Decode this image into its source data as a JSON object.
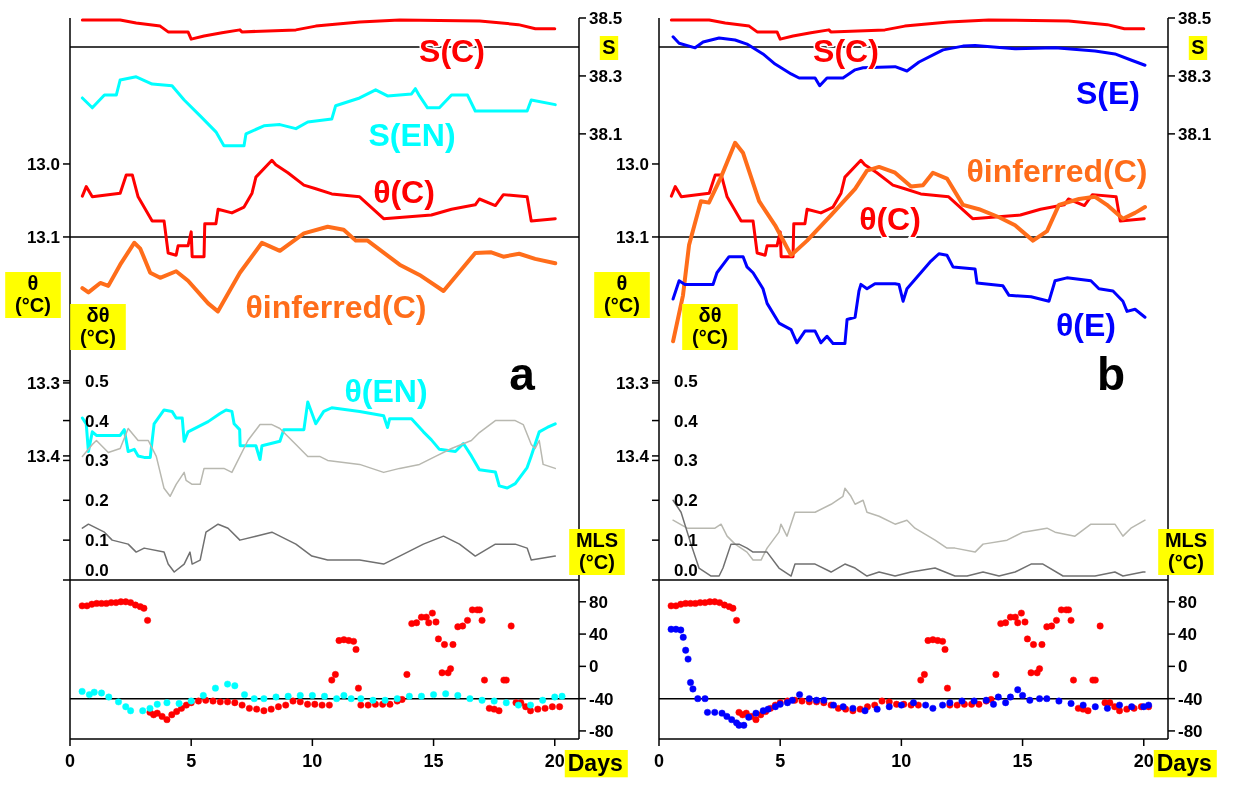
{
  "chart_data": [
    {
      "type": "line",
      "ylabel": "θ (°C)",
      "y2label": "S",
      "y3label": "δθ (°C)",
      "tick_labels": "y",
      "xlim": [
        0,
        21
      ],
      "ylim": [
        13.57,
        12.8
      ],
      "yticks": [
        {
          "value": 13.0,
          "label": "13.0"
        },
        13.1,
        13.3,
        13.4
      ],
      "y2lim": [
        36.56,
        38.5
      ],
      "y2ticks": [
        38.1,
        38.3,
        38.5
      ],
      "y3lim": [
        0,
        1.41
      ],
      "y3ticks": [
        {
          "value": 0,
          "label": "0.0"
        },
        0.1,
        0.2,
        0.3,
        0.4,
        0.5
      ],
      "ref_lines": [
        {
          "axis": "y2",
          "value": 38.4
        },
        {
          "axis": "y",
          "value": 13.1
        }
      ],
      "annotations": [
        "a"
      ],
      "series": [
        {
          "name": "S(C)",
          "color": "#ff0000",
          "axis": "y2",
          "x": [
            0.51,
            2.07,
            2.73,
            3.72,
            4.05,
            4.87,
            5.0,
            5.53,
            6.27,
            7.01,
            7.09,
            9.32,
            10.14,
            11.95,
            13.6,
            16.9,
            18.5,
            19.2,
            20.0
          ],
          "values": [
            38.493,
            38.493,
            38.483,
            38.472,
            38.452,
            38.452,
            38.427,
            38.438,
            38.449,
            38.459,
            38.452,
            38.459,
            38.472,
            38.486,
            38.493,
            38.49,
            38.477,
            38.463,
            38.463
          ]
        },
        {
          "name": "S(EN)",
          "color": "#00ffff",
          "axis": "y2",
          "x": [
            0.51,
            0.92,
            1.42,
            1.91,
            2.07,
            2.73,
            3.39,
            4.21,
            4.71,
            5.37,
            6.02,
            6.35,
            7.18,
            7.26,
            8.0,
            8.66,
            9.32,
            9.81,
            10.8,
            10.96,
            11.95,
            12.61,
            13.1,
            14.09,
            14.25,
            14.42,
            14.75,
            15.24,
            15.74,
            16.4,
            16.72,
            18.86,
            19.03,
            20.02
          ],
          "values": [
            38.224,
            38.19,
            38.234,
            38.234,
            38.286,
            38.297,
            38.272,
            38.266,
            38.217,
            38.162,
            38.107,
            38.059,
            38.059,
            38.1,
            38.128,
            38.132,
            38.118,
            38.141,
            38.151,
            38.197,
            38.224,
            38.252,
            38.231,
            38.238,
            38.256,
            38.231,
            38.19,
            38.19,
            38.234,
            38.234,
            38.179,
            38.179,
            38.217,
            38.201
          ]
        },
        {
          "name": "θ(C)",
          "color": "#ff0000",
          "x": [
            0.51,
            0.67,
            0.92,
            2.07,
            2.32,
            2.57,
            2.81,
            3.39,
            3.88,
            4.05,
            4.38,
            4.46,
            4.87,
            5.0,
            5.04,
            5.53,
            5.56,
            6.02,
            6.11,
            6.68,
            7.18,
            7.51,
            7.67,
            8.33,
            8.49,
            8.99,
            9.65,
            10.14,
            10.8,
            11.95,
            12.94,
            14.91,
            15.74,
            16.72,
            16.89,
            17.55,
            17.88,
            18.86,
            19.03,
            20.02
          ],
          "values": [
            13.044,
            13.031,
            13.045,
            13.04,
            13.015,
            13.015,
            13.045,
            13.078,
            13.078,
            13.122,
            13.125,
            13.112,
            13.112,
            13.093,
            13.127,
            13.127,
            13.082,
            13.082,
            13.062,
            13.067,
            13.059,
            13.04,
            13.018,
            12.995,
            13.001,
            13.012,
            13.029,
            13.034,
            13.041,
            13.045,
            13.075,
            13.07,
            13.062,
            13.056,
            13.048,
            13.057,
            13.042,
            13.045,
            13.078,
            13.075
          ]
        },
        {
          "name": "θinferred(C)",
          "color": "#ff6d1a",
          "x": [
            0.51,
            0.76,
            1.25,
            1.58,
            2.07,
            2.65,
            2.9,
            3.31,
            3.72,
            4.38,
            4.87,
            5.7,
            6.1,
            7.01,
            7.92,
            8.66,
            9.65,
            10.63,
            11.29,
            11.79,
            12.28,
            13.6,
            14.42,
            15.41,
            16.72,
            17.38,
            17.88,
            18.53,
            19.19,
            20.02
          ],
          "values": [
            13.17,
            13.176,
            13.163,
            13.167,
            13.138,
            13.108,
            13.116,
            13.149,
            13.156,
            13.147,
            13.16,
            13.191,
            13.202,
            13.149,
            13.108,
            13.119,
            13.095,
            13.086,
            13.09,
            13.105,
            13.105,
            13.138,
            13.152,
            13.174,
            13.122,
            13.121,
            13.127,
            13.123,
            13.13,
            13.136
          ]
        },
        {
          "name": "θ(EN)",
          "color": "#00ffff",
          "x": [
            0.51,
            0.67,
            0.76,
            0.92,
            1.09,
            2.07,
            2.24,
            2.4,
            2.65,
            2.81,
            3.06,
            3.31,
            3.47,
            3.88,
            4.21,
            4.38,
            4.63,
            4.71,
            4.87,
            5.7,
            6.19,
            6.44,
            6.68,
            6.77,
            7.0,
            7.02,
            7.67,
            7.84,
            7.92,
            8.66,
            8.82,
            9.65,
            9.81,
            10.14,
            10.47,
            10.8,
            11.95,
            12.94,
            13.1,
            13.19,
            14.09,
            14.58,
            14.91,
            15.24,
            15.9,
            16.23,
            16.56,
            16.89,
            17.55,
            17.71,
            18.04,
            18.37,
            18.86,
            19.03,
            19.36,
            19.69,
            20.02
          ],
          "values": [
            13.348,
            13.356,
            13.394,
            13.367,
            13.372,
            13.372,
            13.364,
            13.394,
            13.391,
            13.4,
            13.402,
            13.402,
            13.356,
            13.337,
            13.339,
            13.348,
            13.348,
            13.38,
            13.367,
            13.353,
            13.342,
            13.337,
            13.339,
            13.356,
            13.364,
            13.386,
            13.386,
            13.405,
            13.386,
            13.38,
            13.364,
            13.364,
            13.326,
            13.356,
            13.339,
            13.334,
            13.339,
            13.345,
            13.361,
            13.349,
            13.349,
            13.367,
            13.378,
            13.391,
            13.394,
            13.383,
            13.4,
            13.419,
            13.422,
            13.441,
            13.444,
            13.438,
            13.416,
            13.4,
            13.367,
            13.361,
            13.356
          ]
        },
        {
          "color": "#b8b8b0",
          "axis": "y3",
          "x": [
            0.51,
            0.92,
            1.09,
            1.58,
            2.07,
            2.4,
            2.81,
            3.23,
            3.56,
            3.88,
            4.13,
            4.38,
            4.71,
            4.79,
            5.04,
            5.37,
            5.53,
            6.02,
            6.35,
            6.68,
            7.34,
            7.84,
            8.33,
            8.66,
            9.32,
            9.81,
            10.3,
            10.63,
            11.95,
            12.94,
            13.6,
            14.42,
            15.08,
            15.74,
            16.56,
            16.89,
            17.55,
            18.37,
            18.7,
            19.03,
            19.19,
            19.36,
            19.52,
            20.02
          ],
          "values": [
            0.31,
            0.34,
            0.35,
            0.32,
            0.33,
            0.38,
            0.35,
            0.35,
            0.31,
            0.23,
            0.21,
            0.24,
            0.27,
            0.25,
            0.24,
            0.24,
            0.28,
            0.28,
            0.28,
            0.27,
            0.35,
            0.39,
            0.39,
            0.38,
            0.34,
            0.31,
            0.31,
            0.3,
            0.29,
            0.27,
            0.28,
            0.29,
            0.31,
            0.33,
            0.35,
            0.37,
            0.4,
            0.4,
            0.39,
            0.34,
            0.33,
            0.35,
            0.29,
            0.28
          ]
        },
        {
          "color": "#707070",
          "axis": "y3",
          "x": [
            0.51,
            0.76,
            1.09,
            1.42,
            1.74,
            2.4,
            2.73,
            3.06,
            3.88,
            4.05,
            4.3,
            4.71,
            4.95,
            5.04,
            5.37,
            5.61,
            6.11,
            6.52,
            7.01,
            7.67,
            8.33,
            8.66,
            9.32,
            9.98,
            10.63,
            11.95,
            12.94,
            13.6,
            14.58,
            15.41,
            16.07,
            16.72,
            17.55,
            18.37,
            18.86,
            19.03,
            20.02
          ],
          "values": [
            0.13,
            0.14,
            0.13,
            0.12,
            0.1,
            0.09,
            0.07,
            0.08,
            0.07,
            0.04,
            0.02,
            0.04,
            0.07,
            0.04,
            0.05,
            0.12,
            0.14,
            0.13,
            0.1,
            0.11,
            0.12,
            0.11,
            0.09,
            0.06,
            0.05,
            0.05,
            0.04,
            0.06,
            0.09,
            0.11,
            0.09,
            0.06,
            0.09,
            0.09,
            0.08,
            0.05,
            0.06
          ]
        }
      ]
    },
    {
      "type": "scatter",
      "marker": "circle",
      "xlabel": "Days",
      "ylabel": "MLS (°C)",
      "xlim": [
        0,
        21
      ],
      "xticks": [
        0,
        5,
        10,
        15,
        20
      ],
      "ylim": [
        -90,
        107
      ],
      "yticks": [
        -80,
        -40,
        0,
        40,
        80
      ],
      "ref_lines": [
        {
          "axis": "y",
          "value": -40
        }
      ],
      "series": [
        {
          "color": "#ff0000",
          "x": [
            0.5,
            0.7,
            0.9,
            1.1,
            1.3,
            1.5,
            1.7,
            1.9,
            2.1,
            2.3,
            2.5,
            2.7,
            2.9,
            3.05,
            3.2,
            3.3,
            3.45,
            3.6,
            3.8,
            4.0,
            4.2,
            4.4,
            4.6,
            4.8,
            5.0,
            5.3,
            5.6,
            5.9,
            6.2,
            6.5,
            6.8,
            7.1,
            7.4,
            7.7,
            8.0,
            8.3,
            8.6,
            8.9,
            9.2,
            9.5,
            9.8,
            10.1,
            10.4,
            10.7,
            10.8,
            10.95,
            11.1,
            11.3,
            11.5,
            11.7,
            11.8,
            11.9,
            12.0,
            12.3,
            12.6,
            12.9,
            13.2,
            13.5,
            13.7,
            13.9,
            14.1,
            14.3,
            14.5,
            14.7,
            14.8,
            14.95,
            15.1,
            15.2,
            15.35,
            15.45,
            15.6,
            15.7,
            15.8,
            16.0,
            16.2,
            16.4,
            16.6,
            16.8,
            16.9,
            17.0,
            17.1,
            17.3,
            17.5,
            17.7,
            17.9,
            18.0,
            18.2,
            18.4,
            18.6,
            18.8,
            19.0,
            19.3,
            19.6,
            19.9,
            20.2
          ],
          "values": [
            75,
            75,
            77,
            78,
            78,
            78,
            79,
            79,
            80,
            80,
            79,
            76,
            74,
            72,
            57,
            -57,
            -60,
            -58,
            -62,
            -66,
            -60,
            -56,
            -52,
            -48,
            -45,
            -43,
            -42,
            -43,
            -44,
            -44,
            -45,
            -48,
            -52,
            -53,
            -55,
            -53,
            -50,
            -48,
            -43,
            -44,
            -47,
            -47,
            -48,
            -48,
            -17,
            -10,
            32,
            33,
            32,
            31,
            21,
            -27,
            -48,
            -48,
            -47,
            -47,
            -47,
            -43,
            -41,
            -10,
            53,
            54,
            61,
            61,
            54,
            66,
            55,
            34,
            -8,
            27,
            -8,
            -3,
            27,
            49,
            50,
            57,
            70,
            70,
            70,
            57,
            -17,
            -52,
            -53,
            -55,
            -17,
            -17,
            50,
            -45,
            -45,
            -50,
            -55,
            -53,
            -52,
            -50,
            -50
          ]
        },
        {
          "color": "#00ffff",
          "x": [
            0.5,
            0.8,
            1.0,
            1.3,
            1.6,
            2.0,
            2.3,
            2.5,
            3.0,
            3.3,
            3.6,
            4.0,
            4.5,
            5.0,
            5.5,
            6.0,
            6.5,
            6.8,
            7.2,
            7.6,
            8.0,
            8.5,
            9.0,
            9.5,
            10.0,
            10.5,
            11.0,
            11.3,
            11.6,
            12.0,
            12.5,
            13.0,
            13.5,
            14.0,
            14.5,
            15.0,
            15.5,
            16.0,
            16.5,
            17.0,
            17.5,
            18.0,
            18.5,
            19.0,
            19.5,
            20.0,
            20.3
          ],
          "values": [
            -31,
            -35,
            -32,
            -33,
            -38,
            -44,
            -50,
            -55,
            -55,
            -52,
            -47,
            -45,
            -46,
            -43,
            -36,
            -27,
            -22,
            -24,
            -35,
            -40,
            -40,
            -38,
            -37,
            -36,
            -36,
            -37,
            -40,
            -36,
            -40,
            -40,
            -42,
            -42,
            -40,
            -37,
            -37,
            -35,
            -34,
            -36,
            -40,
            -42,
            -43,
            -45,
            -48,
            -48,
            -42,
            -38,
            -37
          ]
        }
      ]
    },
    {
      "type": "line",
      "ylabel": "θ (°C)",
      "y2label": "S",
      "y3label": "δθ (°C)",
      "tick_labels": "y",
      "xlim": [
        0,
        21
      ],
      "ylim": [
        13.57,
        12.8
      ],
      "yticks": [
        {
          "value": 13.0,
          "label": "13.0"
        },
        13.1,
        13.3,
        13.4
      ],
      "y2lim": [
        36.56,
        38.5
      ],
      "y2ticks": [
        38.1,
        38.3,
        38.5
      ],
      "y3lim": [
        0,
        1.41
      ],
      "y3ticks": [
        {
          "value": 0,
          "label": "0.0"
        },
        0.1,
        0.2,
        0.3,
        0.4,
        0.5
      ],
      "ref_lines": [
        {
          "axis": "y2",
          "value": 38.4
        },
        {
          "axis": "y",
          "value": 13.1
        }
      ],
      "annotations": [
        "b"
      ],
      "series": [
        {
          "name": "S(C)",
          "color": "#ff0000",
          "axis": "y2",
          "x": [
            0.51,
            2.07,
            2.73,
            3.72,
            4.05,
            4.87,
            5.0,
            5.53,
            6.27,
            7.01,
            7.09,
            9.32,
            10.14,
            11.95,
            13.6,
            16.9,
            18.5,
            19.2,
            20.0
          ],
          "values": [
            38.493,
            38.493,
            38.483,
            38.472,
            38.452,
            38.452,
            38.427,
            38.438,
            38.449,
            38.459,
            38.452,
            38.459,
            38.472,
            38.486,
            38.493,
            38.49,
            38.477,
            38.463,
            38.463
          ]
        },
        {
          "name": "S(E)",
          "color": "#0000ff",
          "axis": "y2",
          "x": [
            0.58,
            0.83,
            1.49,
            1.82,
            2.48,
            3.14,
            3.63,
            4.29,
            4.79,
            5.45,
            5.78,
            6.44,
            6.63,
            6.93,
            7.59,
            8.09,
            8.42,
            9.74,
            10.23,
            10.73,
            11.39,
            11.72,
            12.54,
            13.04,
            14.69,
            16.34,
            17.99,
            18.81,
            19.47,
            20.05
          ],
          "values": [
            38.435,
            38.413,
            38.397,
            38.417,
            38.431,
            38.424,
            38.41,
            38.376,
            38.341,
            38.307,
            38.293,
            38.293,
            38.266,
            38.293,
            38.293,
            38.321,
            38.328,
            38.332,
            38.317,
            38.348,
            38.376,
            38.39,
            38.403,
            38.405,
            38.394,
            38.397,
            38.386,
            38.376,
            38.355,
            38.337
          ]
        },
        {
          "name": "θ(C)",
          "color": "#ff0000",
          "x": [
            0.51,
            0.67,
            0.92,
            2.07,
            2.32,
            2.57,
            2.81,
            3.39,
            3.88,
            4.05,
            4.38,
            4.46,
            4.87,
            5.0,
            5.04,
            5.53,
            5.56,
            6.02,
            6.11,
            6.68,
            7.18,
            7.51,
            7.67,
            8.33,
            8.49,
            8.99,
            9.65,
            10.14,
            10.8,
            11.95,
            12.94,
            14.91,
            15.74,
            16.72,
            16.89,
            17.55,
            17.88,
            18.86,
            19.03,
            20.02
          ],
          "values": [
            13.044,
            13.031,
            13.045,
            13.04,
            13.015,
            13.015,
            13.045,
            13.078,
            13.078,
            13.122,
            13.125,
            13.112,
            13.112,
            13.093,
            13.127,
            13.127,
            13.082,
            13.082,
            13.062,
            13.067,
            13.059,
            13.04,
            13.018,
            12.995,
            13.001,
            13.012,
            13.029,
            13.034,
            13.041,
            13.045,
            13.075,
            13.07,
            13.062,
            13.056,
            13.048,
            13.057,
            13.042,
            13.045,
            13.078,
            13.075
          ]
        },
        {
          "name": "θinferred(C)",
          "color": "#ff6d1a",
          "x": [
            0.58,
            0.99,
            1.24,
            1.73,
            2.06,
            2.56,
            3.14,
            3.47,
            4.13,
            4.79,
            5.45,
            6.11,
            7.1,
            8.09,
            8.58,
            9.08,
            9.74,
            10.4,
            10.89,
            11.3,
            11.88,
            12.54,
            13.2,
            14.03,
            14.69,
            15.43,
            16.01,
            16.5,
            17.33,
            17.99,
            18.48,
            19.14,
            19.64,
            20.05
          ],
          "values": [
            13.243,
            13.18,
            13.111,
            13.051,
            13.053,
            13.018,
            12.971,
            12.985,
            13.051,
            13.084,
            13.125,
            13.105,
            13.07,
            13.034,
            13.009,
            13.004,
            13.012,
            13.031,
            13.029,
            13.012,
            13.02,
            13.056,
            13.062,
            13.073,
            13.084,
            13.105,
            13.092,
            13.056,
            13.048,
            13.045,
            13.056,
            13.075,
            13.067,
            13.059
          ]
        },
        {
          "name": "θ(E)",
          "color": "#0000ff",
          "x": [
            0.58,
            0.83,
            1.07,
            2.23,
            2.39,
            2.89,
            3.47,
            3.63,
            3.88,
            4.29,
            4.46,
            4.95,
            5.45,
            5.69,
            6.02,
            6.44,
            6.68,
            6.93,
            7.18,
            7.67,
            7.76,
            8.09,
            8.25,
            8.33,
            8.58,
            8.91,
            9.74,
            9.9,
            10.07,
            10.23,
            11.22,
            11.55,
            11.88,
            12.13,
            13.04,
            13.12,
            14.19,
            14.44,
            15.35,
            16.09,
            16.34,
            16.83,
            17.82,
            18.15,
            18.73,
            19.14,
            19.31,
            19.64,
            20.05
          ],
          "values": [
            13.185,
            13.16,
            13.165,
            13.165,
            13.149,
            13.127,
            13.127,
            13.141,
            13.149,
            13.171,
            13.191,
            13.218,
            13.227,
            13.245,
            13.229,
            13.229,
            13.245,
            13.236,
            13.246,
            13.246,
            13.213,
            13.21,
            13.174,
            13.165,
            13.171,
            13.164,
            13.164,
            13.165,
            13.188,
            13.171,
            13.133,
            13.123,
            13.125,
            13.141,
            13.144,
            13.163,
            13.167,
            13.18,
            13.182,
            13.188,
            13.16,
            13.156,
            13.16,
            13.171,
            13.174,
            13.188,
            13.202,
            13.199,
            13.21
          ]
        },
        {
          "color": "#b8b8b0",
          "axis": "y3",
          "x": [
            0.58,
            1.16,
            2.31,
            2.56,
            2.81,
            3.14,
            3.63,
            3.88,
            4.21,
            4.46,
            4.95,
            5.03,
            5.28,
            5.61,
            6.44,
            7.1,
            7.59,
            7.67,
            7.92,
            8.09,
            8.42,
            8.58,
            9.08,
            9.74,
            10.23,
            10.56,
            11.39,
            11.88,
            12.21,
            13.04,
            13.37,
            14.36,
            15.02,
            16.01,
            16.34,
            17.16,
            17.82,
            18.81,
            19.14,
            19.47,
            20.05
          ],
          "values": [
            0.15,
            0.13,
            0.13,
            0.14,
            0.11,
            0.09,
            0.07,
            0.05,
            0.05,
            0.08,
            0.12,
            0.14,
            0.11,
            0.17,
            0.17,
            0.19,
            0.21,
            0.23,
            0.21,
            0.19,
            0.2,
            0.17,
            0.16,
            0.14,
            0.15,
            0.13,
            0.1,
            0.08,
            0.08,
            0.07,
            0.09,
            0.1,
            0.12,
            0.13,
            0.12,
            0.11,
            0.14,
            0.14,
            0.11,
            0.13,
            0.15
          ]
        },
        {
          "color": "#707070",
          "axis": "y3",
          "x": [
            0.58,
            0.91,
            1.32,
            1.65,
            2.15,
            2.48,
            2.64,
            2.97,
            3.3,
            3.63,
            3.88,
            4.13,
            4.46,
            4.95,
            5.45,
            5.61,
            6.11,
            6.44,
            7.1,
            7.67,
            8.09,
            8.58,
            9.08,
            9.74,
            10.4,
            11.39,
            12.21,
            12.71,
            13.37,
            14.03,
            14.69,
            15.35,
            15.84,
            16.67,
            17.99,
            18.81,
            19.14,
            19.97,
            20.05
          ],
          "values": [
            0.2,
            0.17,
            0.09,
            0.03,
            0.01,
            0.01,
            0.03,
            0.09,
            0.09,
            0.08,
            0.07,
            0.07,
            0.07,
            0.03,
            0.01,
            0.04,
            0.04,
            0.04,
            0.02,
            0.04,
            0.03,
            0.01,
            0.02,
            0.01,
            0.02,
            0.03,
            0.01,
            0.01,
            0.02,
            0.01,
            0.02,
            0.04,
            0.04,
            0.01,
            0.01,
            0.02,
            0.01,
            0.02,
            0.02
          ]
        }
      ]
    },
    {
      "type": "scatter",
      "marker": "circle",
      "xlabel": "Days",
      "ylabel": "MLS (°C)",
      "xlim": [
        0,
        21
      ],
      "xticks": [
        0,
        5,
        10,
        15,
        20
      ],
      "ylim": [
        -90,
        107
      ],
      "yticks": [
        -80,
        -40,
        0,
        40,
        80
      ],
      "ref_lines": [
        {
          "axis": "y",
          "value": -40
        }
      ],
      "series": [
        {
          "color": "#ff0000",
          "x": [
            0.5,
            0.7,
            0.9,
            1.1,
            1.3,
            1.5,
            1.7,
            1.9,
            2.1,
            2.3,
            2.5,
            2.7,
            2.9,
            3.05,
            3.2,
            3.3,
            3.45,
            3.6,
            3.8,
            4.0,
            4.2,
            4.4,
            4.6,
            4.8,
            5.0,
            5.3,
            5.6,
            5.9,
            6.2,
            6.5,
            6.8,
            7.1,
            7.4,
            7.7,
            8.0,
            8.3,
            8.6,
            8.9,
            9.2,
            9.5,
            9.8,
            10.1,
            10.4,
            10.7,
            10.8,
            10.95,
            11.1,
            11.3,
            11.5,
            11.7,
            11.8,
            11.9,
            12.0,
            12.3,
            12.6,
            12.9,
            13.2,
            13.5,
            13.7,
            13.9,
            14.1,
            14.3,
            14.5,
            14.7,
            14.8,
            14.95,
            15.1,
            15.2,
            15.35,
            15.45,
            15.6,
            15.7,
            15.8,
            16.0,
            16.2,
            16.4,
            16.6,
            16.8,
            16.9,
            17.0,
            17.1,
            17.3,
            17.5,
            17.7,
            17.9,
            18.0,
            18.2,
            18.4,
            18.6,
            18.8,
            19.0,
            19.3,
            19.6,
            19.9,
            20.2
          ],
          "values": [
            75,
            75,
            77,
            78,
            78,
            78,
            79,
            79,
            80,
            80,
            79,
            76,
            74,
            72,
            57,
            -57,
            -60,
            -58,
            -62,
            -66,
            -60,
            -56,
            -52,
            -48,
            -45,
            -43,
            -42,
            -43,
            -44,
            -44,
            -45,
            -48,
            -52,
            -53,
            -55,
            -53,
            -50,
            -48,
            -43,
            -44,
            -47,
            -47,
            -48,
            -48,
            -17,
            -10,
            32,
            33,
            32,
            31,
            21,
            -27,
            -48,
            -48,
            -47,
            -47,
            -47,
            -43,
            -41,
            -10,
            53,
            54,
            61,
            61,
            54,
            66,
            55,
            34,
            -8,
            27,
            -8,
            -3,
            27,
            49,
            50,
            57,
            70,
            70,
            70,
            57,
            -17,
            -52,
            -53,
            -55,
            -17,
            -17,
            50,
            -45,
            -45,
            -50,
            -55,
            -53,
            -52,
            -50,
            -50
          ]
        },
        {
          "color": "#0000ff",
          "x": [
            0.5,
            0.7,
            0.9,
            1.0,
            1.1,
            1.2,
            1.3,
            1.4,
            1.6,
            1.9,
            2.0,
            2.3,
            2.6,
            2.8,
            3.0,
            3.2,
            3.3,
            3.5,
            3.7,
            4.0,
            4.3,
            4.5,
            4.8,
            5.0,
            5.3,
            5.5,
            5.8,
            6.2,
            6.5,
            6.8,
            7.2,
            7.6,
            8.0,
            8.5,
            9.0,
            9.5,
            10.0,
            10.5,
            11.0,
            11.3,
            11.7,
            12.0,
            12.5,
            13.0,
            13.5,
            13.8,
            14.0,
            14.3,
            14.5,
            14.8,
            15.0,
            15.3,
            15.7,
            16.0,
            16.5,
            17.0,
            17.5,
            18.0,
            18.5,
            19.0,
            19.5,
            20.0,
            20.2
          ],
          "values": [
            46,
            46,
            45,
            36,
            20,
            9,
            -20,
            -28,
            -40,
            -40,
            -57,
            -57,
            -58,
            -62,
            -66,
            -70,
            -73,
            -73,
            -63,
            -58,
            -55,
            -53,
            -50,
            -47,
            -45,
            -42,
            -35,
            -40,
            -42,
            -42,
            -48,
            -50,
            -52,
            -55,
            -53,
            -50,
            -48,
            -45,
            -48,
            -52,
            -48,
            -45,
            -43,
            -43,
            -42,
            -47,
            -38,
            -45,
            -38,
            -29,
            -36,
            -42,
            -40,
            -40,
            -43,
            -46,
            -48,
            -50,
            -52,
            -48,
            -50,
            -50,
            -48
          ]
        }
      ]
    }
  ]
}
